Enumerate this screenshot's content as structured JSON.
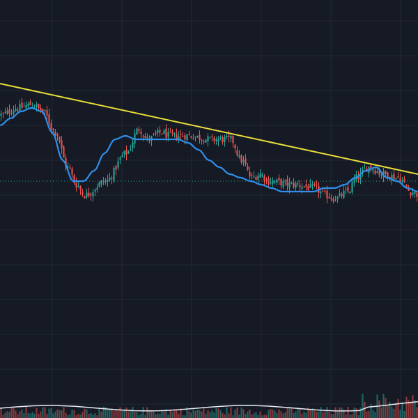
{
  "colors": {
    "background": "#161a25",
    "grid": "#232838",
    "bull": "#26a69a",
    "bear": "#ef5350",
    "moving_average": "#2f8fea",
    "trend_line": "#e9df3a",
    "last_price_line": "#26a69a",
    "volume_average": "#e8ecf3"
  },
  "chart_data": {
    "type": "candlestick",
    "title": "",
    "xlabel": "",
    "ylabel": "",
    "grid": true,
    "axes_visible": false,
    "legend": "none",
    "bar_count": 200,
    "ylim": [
      0,
      100
    ],
    "close_path": {
      "x": [
        0,
        8,
        15,
        20,
        26,
        32,
        36,
        40,
        50,
        60,
        66,
        70,
        77,
        80,
        90,
        100,
        110,
        115,
        120,
        124,
        128,
        140,
        150,
        155,
        160,
        166,
        170,
        176,
        183,
        190,
        196,
        200
      ],
      "y": [
        67,
        69,
        70,
        68,
        62,
        52,
        47,
        44,
        48,
        56,
        63,
        60,
        62,
        61,
        61,
        60,
        60,
        54,
        49,
        50,
        48,
        47,
        46,
        44,
        43,
        45,
        49,
        52,
        50,
        49,
        45,
        44
      ]
    },
    "moving_average": {
      "x": [
        0,
        5,
        10,
        15,
        20,
        25,
        30,
        35,
        40,
        45,
        50,
        55,
        60,
        65,
        70,
        75,
        80,
        85,
        90,
        95,
        100,
        105,
        110,
        115,
        120,
        125,
        130,
        135,
        140,
        145,
        150,
        155,
        160,
        165,
        170,
        175,
        180,
        185,
        190,
        195,
        200
      ],
      "y": [
        64,
        66,
        68,
        69,
        68,
        62,
        54,
        48,
        48,
        51,
        56,
        60,
        61,
        60,
        60,
        60,
        60,
        60,
        59,
        57,
        54,
        52,
        50,
        49,
        48,
        47,
        46,
        45,
        45,
        45,
        45,
        46,
        46,
        47,
        49,
        51,
        52,
        49,
        48,
        46,
        45
      ]
    },
    "trend_line": {
      "x": [
        0,
        200
      ],
      "y": [
        76,
        50
      ]
    },
    "last_price_level": 48,
    "volume": {
      "ylim": [
        0,
        100
      ],
      "baseline": 14,
      "surge_from_bar": 172,
      "average_level": 24
    }
  }
}
